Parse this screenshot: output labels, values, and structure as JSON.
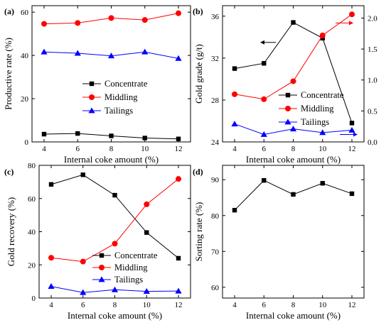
{
  "chart_data": [
    {
      "type": "line",
      "panel_label": "(a)",
      "x": [
        4,
        6,
        8,
        10,
        12
      ],
      "xlabel": "Internal coke amount (%)",
      "ylabel": "Productive rate (%)",
      "xticks": [
        "4",
        "6",
        "8",
        "10",
        "12"
      ],
      "yticks": [
        "0",
        "20",
        "40",
        "60"
      ],
      "ylim": [
        0,
        63
      ],
      "legend_position": "center-right",
      "series": [
        {
          "name": "Concentrate",
          "color": "#000000",
          "marker": "square",
          "values": [
            3.6,
            3.9,
            2.8,
            1.8,
            1.4
          ]
        },
        {
          "name": "Middling",
          "color": "#ff0000",
          "marker": "circle",
          "values": [
            54.6,
            55.0,
            57.3,
            56.4,
            59.5
          ]
        },
        {
          "name": "Tailings",
          "color": "#0000ff",
          "marker": "triangle",
          "values": [
            41.6,
            41.0,
            39.8,
            41.6,
            38.6
          ]
        }
      ]
    },
    {
      "type": "line",
      "panel_label": "(b)",
      "x": [
        4,
        6,
        8,
        10,
        12
      ],
      "xlabel": "Internal coke amount (%)",
      "ylabel": "Gold grade (g/t)",
      "xticks": [
        "4",
        "6",
        "8",
        "10",
        "12"
      ],
      "yticks": [
        "24",
        "28",
        "32",
        "36"
      ],
      "ylim": [
        24,
        37
      ],
      "y2ticks": [
        "0.0",
        "0.5",
        "1.0",
        "1.5",
        "2.0"
      ],
      "y2lim": [
        0,
        2.2
      ],
      "legend_position": "center-right",
      "series": [
        {
          "name": "Concentrate",
          "axis": "left",
          "color": "#000000",
          "marker": "square",
          "values": [
            31.0,
            31.5,
            35.4,
            33.9,
            25.8
          ]
        },
        {
          "name": "Middling",
          "axis": "right",
          "color": "#ff0000",
          "marker": "circle",
          "values": [
            0.77,
            0.69,
            0.98,
            1.72,
            2.06
          ]
        },
        {
          "name": "Tailings",
          "axis": "right",
          "color": "#0000ff",
          "marker": "triangle",
          "values": [
            0.29,
            0.12,
            0.21,
            0.15,
            0.19
          ]
        }
      ]
    },
    {
      "type": "line",
      "panel_label": "(c)",
      "x": [
        4,
        6,
        8,
        10,
        12
      ],
      "xlabel": "Internal coke amount (%)",
      "ylabel": "Gold recovery (%)",
      "xticks": [
        "4",
        "6",
        "8",
        "10",
        "12"
      ],
      "yticks": [
        "0",
        "20",
        "40",
        "60",
        "80"
      ],
      "ylim": [
        0,
        80
      ],
      "legend_position": "bottom-right",
      "series": [
        {
          "name": "Concentrate",
          "color": "#000000",
          "marker": "square",
          "values": [
            68.5,
            74.3,
            62.0,
            39.5,
            24.0
          ]
        },
        {
          "name": "Middling",
          "color": "#ff0000",
          "marker": "circle",
          "values": [
            24.3,
            22.0,
            32.8,
            56.5,
            71.8
          ]
        },
        {
          "name": "Tailings",
          "color": "#0000ff",
          "marker": "triangle",
          "values": [
            7.0,
            3.3,
            5.0,
            4.0,
            4.2
          ]
        }
      ]
    },
    {
      "type": "line",
      "panel_label": "(d)",
      "x": [
        4,
        6,
        8,
        10,
        12
      ],
      "xlabel": "Internal coke amount (%)",
      "ylabel": "Sorting rate (%)",
      "xticks": [
        "4",
        "6",
        "8",
        "10",
        "12"
      ],
      "yticks": [
        "60",
        "70",
        "80",
        "90"
      ],
      "ylim": [
        57,
        94
      ],
      "series": [
        {
          "name": "",
          "color": "#000000",
          "marker": "square",
          "values": [
            81.5,
            89.8,
            85.9,
            89.0,
            86.1
          ]
        }
      ]
    }
  ]
}
